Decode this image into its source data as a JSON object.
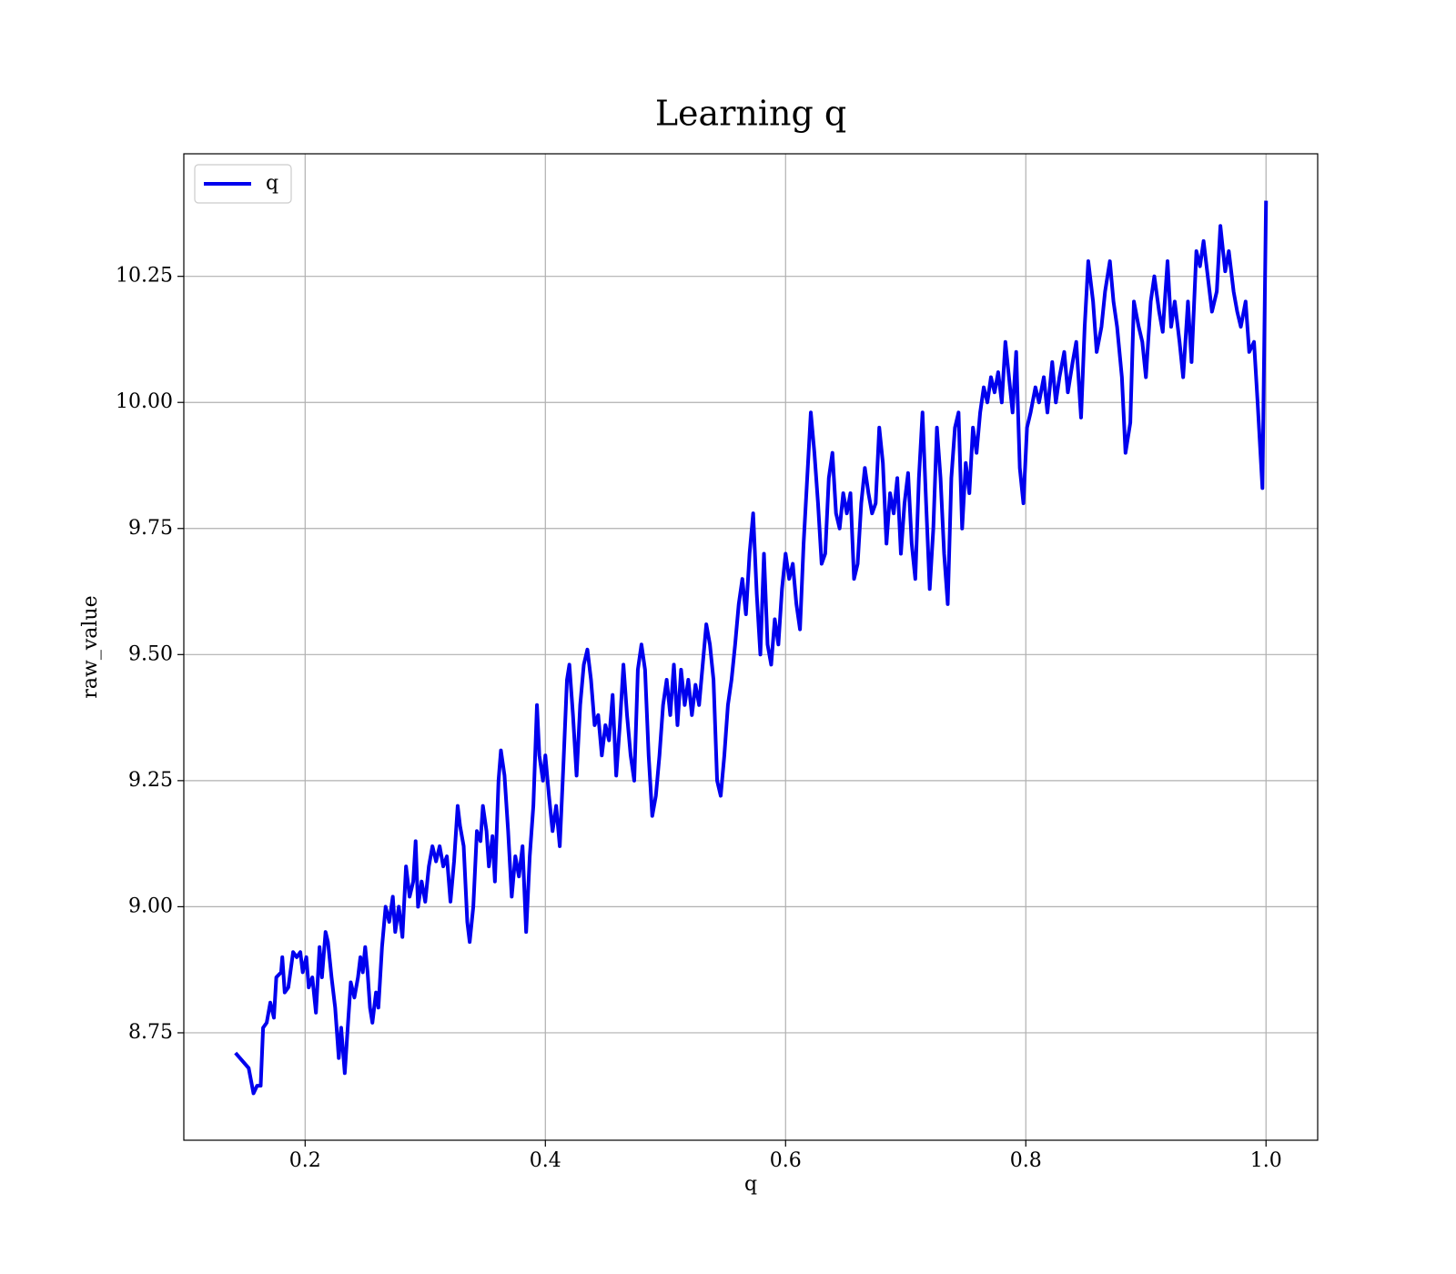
{
  "chart_data": {
    "type": "line",
    "title": "Learning q",
    "xlabel": "q",
    "ylabel": "raw_value",
    "xlim": [
      0.099,
      1.043
    ],
    "ylim": [
      8.537,
      10.493
    ],
    "xticks": [
      0.2,
      0.4,
      0.6,
      0.8,
      {
        "value": 1.0,
        "label": "1.0"
      }
    ],
    "yticks": [
      8.75,
      {
        "value": 9.0,
        "label": "9.00"
      },
      9.25,
      {
        "value": 9.5,
        "label": "9.50"
      },
      9.75,
      {
        "value": 10.0,
        "label": "10.00"
      },
      10.25
    ],
    "grid": true,
    "legend": "upper left",
    "x": [
      0.142,
      0.153,
      0.157,
      0.16,
      0.163,
      0.165,
      0.168,
      0.171,
      0.174,
      0.176,
      0.18,
      0.181,
      0.183,
      0.186,
      0.19,
      0.193,
      0.196,
      0.198,
      0.201,
      0.203,
      0.206,
      0.209,
      0.212,
      0.214,
      0.217,
      0.219,
      0.222,
      0.225,
      0.228,
      0.23,
      0.233,
      0.236,
      0.238,
      0.241,
      0.244,
      0.246,
      0.248,
      0.25,
      0.252,
      0.254,
      0.256,
      0.259,
      0.261,
      0.264,
      0.267,
      0.27,
      0.273,
      0.275,
      0.278,
      0.281,
      0.284,
      0.287,
      0.29,
      0.292,
      0.294,
      0.297,
      0.3,
      0.303,
      0.306,
      0.309,
      0.312,
      0.315,
      0.318,
      0.321,
      0.324,
      0.327,
      0.329,
      0.332,
      0.335,
      0.337,
      0.34,
      0.343,
      0.346,
      0.348,
      0.351,
      0.353,
      0.356,
      0.358,
      0.361,
      0.363,
      0.366,
      0.369,
      0.372,
      0.375,
      0.378,
      0.381,
      0.384,
      0.387,
      0.39,
      0.393,
      0.395,
      0.398,
      0.4,
      0.403,
      0.406,
      0.409,
      0.412,
      0.415,
      0.418,
      0.42,
      0.423,
      0.426,
      0.429,
      0.432,
      0.435,
      0.438,
      0.441,
      0.444,
      0.447,
      0.45,
      0.453,
      0.456,
      0.459,
      0.462,
      0.465,
      0.468,
      0.471,
      0.474,
      0.477,
      0.48,
      0.483,
      0.486,
      0.489,
      0.492,
      0.495,
      0.498,
      0.501,
      0.504,
      0.507,
      0.51,
      0.513,
      0.516,
      0.519,
      0.522,
      0.525,
      0.528,
      0.531,
      0.534,
      0.537,
      0.54,
      0.543,
      0.546,
      0.549,
      0.552,
      0.555,
      0.558,
      0.561,
      0.564,
      0.567,
      0.57,
      0.573,
      0.576,
      0.579,
      0.582,
      0.585,
      0.588,
      0.591,
      0.594,
      0.597,
      0.6,
      0.603,
      0.606,
      0.609,
      0.612,
      0.615,
      0.618,
      0.621,
      0.624,
      0.627,
      0.63,
      0.633,
      0.636,
      0.639,
      0.642,
      0.645,
      0.648,
      0.651,
      0.654,
      0.657,
      0.66,
      0.663,
      0.666,
      0.669,
      0.672,
      0.675,
      0.678,
      0.681,
      0.684,
      0.687,
      0.69,
      0.693,
      0.696,
      0.699,
      0.702,
      0.705,
      0.708,
      0.711,
      0.714,
      0.717,
      0.72,
      0.723,
      0.726,
      0.729,
      0.732,
      0.735,
      0.738,
      0.741,
      0.744,
      0.747,
      0.75,
      0.753,
      0.756,
      0.759,
      0.762,
      0.765,
      0.768,
      0.771,
      0.774,
      0.777,
      0.78,
      0.783,
      0.786,
      0.789,
      0.792,
      0.795,
      0.798,
      0.801,
      0.804,
      0.808,
      0.811,
      0.815,
      0.818,
      0.822,
      0.825,
      0.828,
      0.832,
      0.835,
      0.839,
      0.842,
      0.846,
      0.849,
      0.852,
      0.856,
      0.859,
      0.863,
      0.866,
      0.87,
      0.873,
      0.876,
      0.88,
      0.883,
      0.887,
      0.89,
      0.894,
      0.897,
      0.9,
      0.904,
      0.907,
      0.911,
      0.914,
      0.918,
      0.921,
      0.924,
      0.928,
      0.931,
      0.935,
      0.938,
      0.942,
      0.945,
      0.948,
      0.952,
      0.955,
      0.959,
      0.962,
      0.966,
      0.969,
      0.973,
      0.976,
      0.979,
      0.983,
      0.986,
      0.99,
      0.993,
      0.997,
      1.0
    ],
    "series": [
      {
        "name": "q",
        "color": "#0000ee",
        "values": [
          8.71,
          8.68,
          8.63,
          8.645,
          8.645,
          8.76,
          8.77,
          8.81,
          8.78,
          8.86,
          8.87,
          8.9,
          8.83,
          8.84,
          8.91,
          8.9,
          8.91,
          8.87,
          8.9,
          8.84,
          8.86,
          8.79,
          8.92,
          8.86,
          8.95,
          8.93,
          8.86,
          8.8,
          8.7,
          8.76,
          8.67,
          8.78,
          8.85,
          8.82,
          8.86,
          8.9,
          8.87,
          8.92,
          8.87,
          8.8,
          8.77,
          8.83,
          8.8,
          8.92,
          9.0,
          8.97,
          9.02,
          8.95,
          9.0,
          8.94,
          9.08,
          9.02,
          9.05,
          9.13,
          9.0,
          9.05,
          9.01,
          9.08,
          9.12,
          9.09,
          9.12,
          9.08,
          9.1,
          9.01,
          9.09,
          9.2,
          9.16,
          9.12,
          8.97,
          8.93,
          9.0,
          9.15,
          9.13,
          9.2,
          9.15,
          9.08,
          9.14,
          9.05,
          9.25,
          9.31,
          9.26,
          9.15,
          9.02,
          9.1,
          9.06,
          9.12,
          8.95,
          9.1,
          9.2,
          9.4,
          9.3,
          9.25,
          9.3,
          9.22,
          9.15,
          9.2,
          9.12,
          9.28,
          9.45,
          9.48,
          9.38,
          9.26,
          9.4,
          9.48,
          9.51,
          9.45,
          9.36,
          9.38,
          9.3,
          9.36,
          9.33,
          9.42,
          9.26,
          9.36,
          9.48,
          9.38,
          9.3,
          9.25,
          9.47,
          9.52,
          9.47,
          9.3,
          9.18,
          9.22,
          9.3,
          9.4,
          9.45,
          9.38,
          9.48,
          9.36,
          9.47,
          9.4,
          9.45,
          9.38,
          9.44,
          9.4,
          9.48,
          9.56,
          9.52,
          9.45,
          9.25,
          9.22,
          9.3,
          9.4,
          9.45,
          9.52,
          9.6,
          9.65,
          9.58,
          9.7,
          9.78,
          9.62,
          9.5,
          9.7,
          9.52,
          9.48,
          9.57,
          9.52,
          9.63,
          9.7,
          9.65,
          9.68,
          9.6,
          9.55,
          9.72,
          9.85,
          9.98,
          9.9,
          9.8,
          9.68,
          9.7,
          9.85,
          9.9,
          9.78,
          9.75,
          9.82,
          9.78,
          9.82,
          9.65,
          9.68,
          9.8,
          9.87,
          9.82,
          9.78,
          9.8,
          9.95,
          9.88,
          9.72,
          9.82,
          9.78,
          9.85,
          9.7,
          9.8,
          9.86,
          9.72,
          9.65,
          9.85,
          9.98,
          9.8,
          9.63,
          9.75,
          9.95,
          9.85,
          9.7,
          9.6,
          9.85,
          9.95,
          9.98,
          9.75,
          9.88,
          9.82,
          9.95,
          9.9,
          9.98,
          10.03,
          10.0,
          10.05,
          10.02,
          10.06,
          10.0,
          10.12,
          10.05,
          9.98,
          10.1,
          9.87,
          9.8,
          9.95,
          9.98,
          10.03,
          10.0,
          10.05,
          9.98,
          10.08,
          10.0,
          10.05,
          10.1,
          10.02,
          10.08,
          10.12,
          9.97,
          10.15,
          10.28,
          10.2,
          10.1,
          10.15,
          10.22,
          10.28,
          10.2,
          10.15,
          10.05,
          9.9,
          9.96,
          10.2,
          10.15,
          10.12,
          10.05,
          10.2,
          10.25,
          10.18,
          10.14,
          10.28,
          10.15,
          10.2,
          10.12,
          10.05,
          10.2,
          10.08,
          10.3,
          10.27,
          10.32,
          10.24,
          10.18,
          10.22,
          10.35,
          10.26,
          10.3,
          10.22,
          10.18,
          10.15,
          10.2,
          10.1,
          10.12,
          10.0,
          9.83,
          10.4
        ]
      }
    ]
  }
}
